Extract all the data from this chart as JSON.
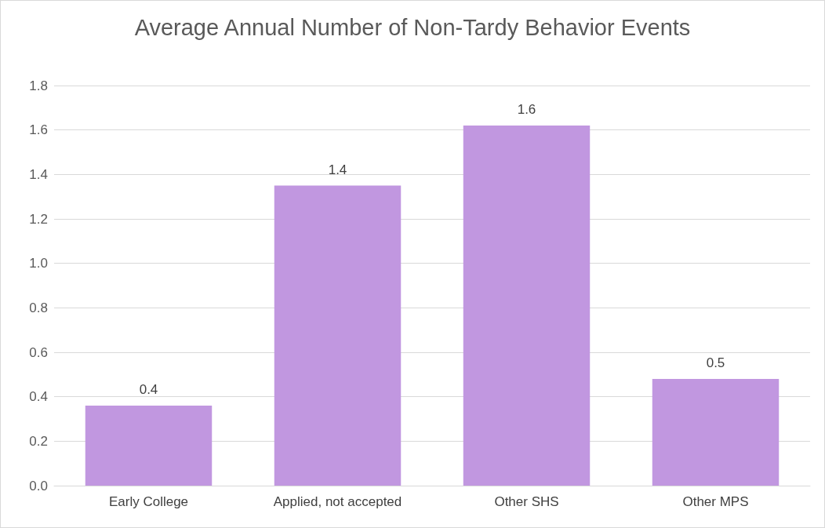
{
  "chart_data": {
    "type": "bar",
    "title": "Average Annual Number of Non-Tardy Behavior Events",
    "categories": [
      "Early College",
      "Applied, not accepted",
      "Other SHS",
      "Other MPS"
    ],
    "values": [
      0.36,
      1.35,
      1.62,
      0.48
    ],
    "value_labels": [
      "0.4",
      "1.4",
      "1.6",
      "0.5"
    ],
    "color": "#c197e0",
    "ylim": [
      0,
      1.8
    ],
    "yticks": [
      {
        "value": 0,
        "label": "0.0"
      },
      {
        "value": 0.2,
        "label": "0.2"
      },
      {
        "value": 0.4,
        "label": "0.4"
      },
      {
        "value": 0.6,
        "label": "0.6"
      },
      {
        "value": 0.8,
        "label": "0.8"
      },
      {
        "value": 1,
        "label": "1.0"
      },
      {
        "value": 1.2,
        "label": "1.2"
      },
      {
        "value": 1.4,
        "label": "1.4"
      },
      {
        "value": 1.6,
        "label": "1.6"
      },
      {
        "value": 1.8,
        "label": "1.8"
      }
    ],
    "grid": "y"
  }
}
